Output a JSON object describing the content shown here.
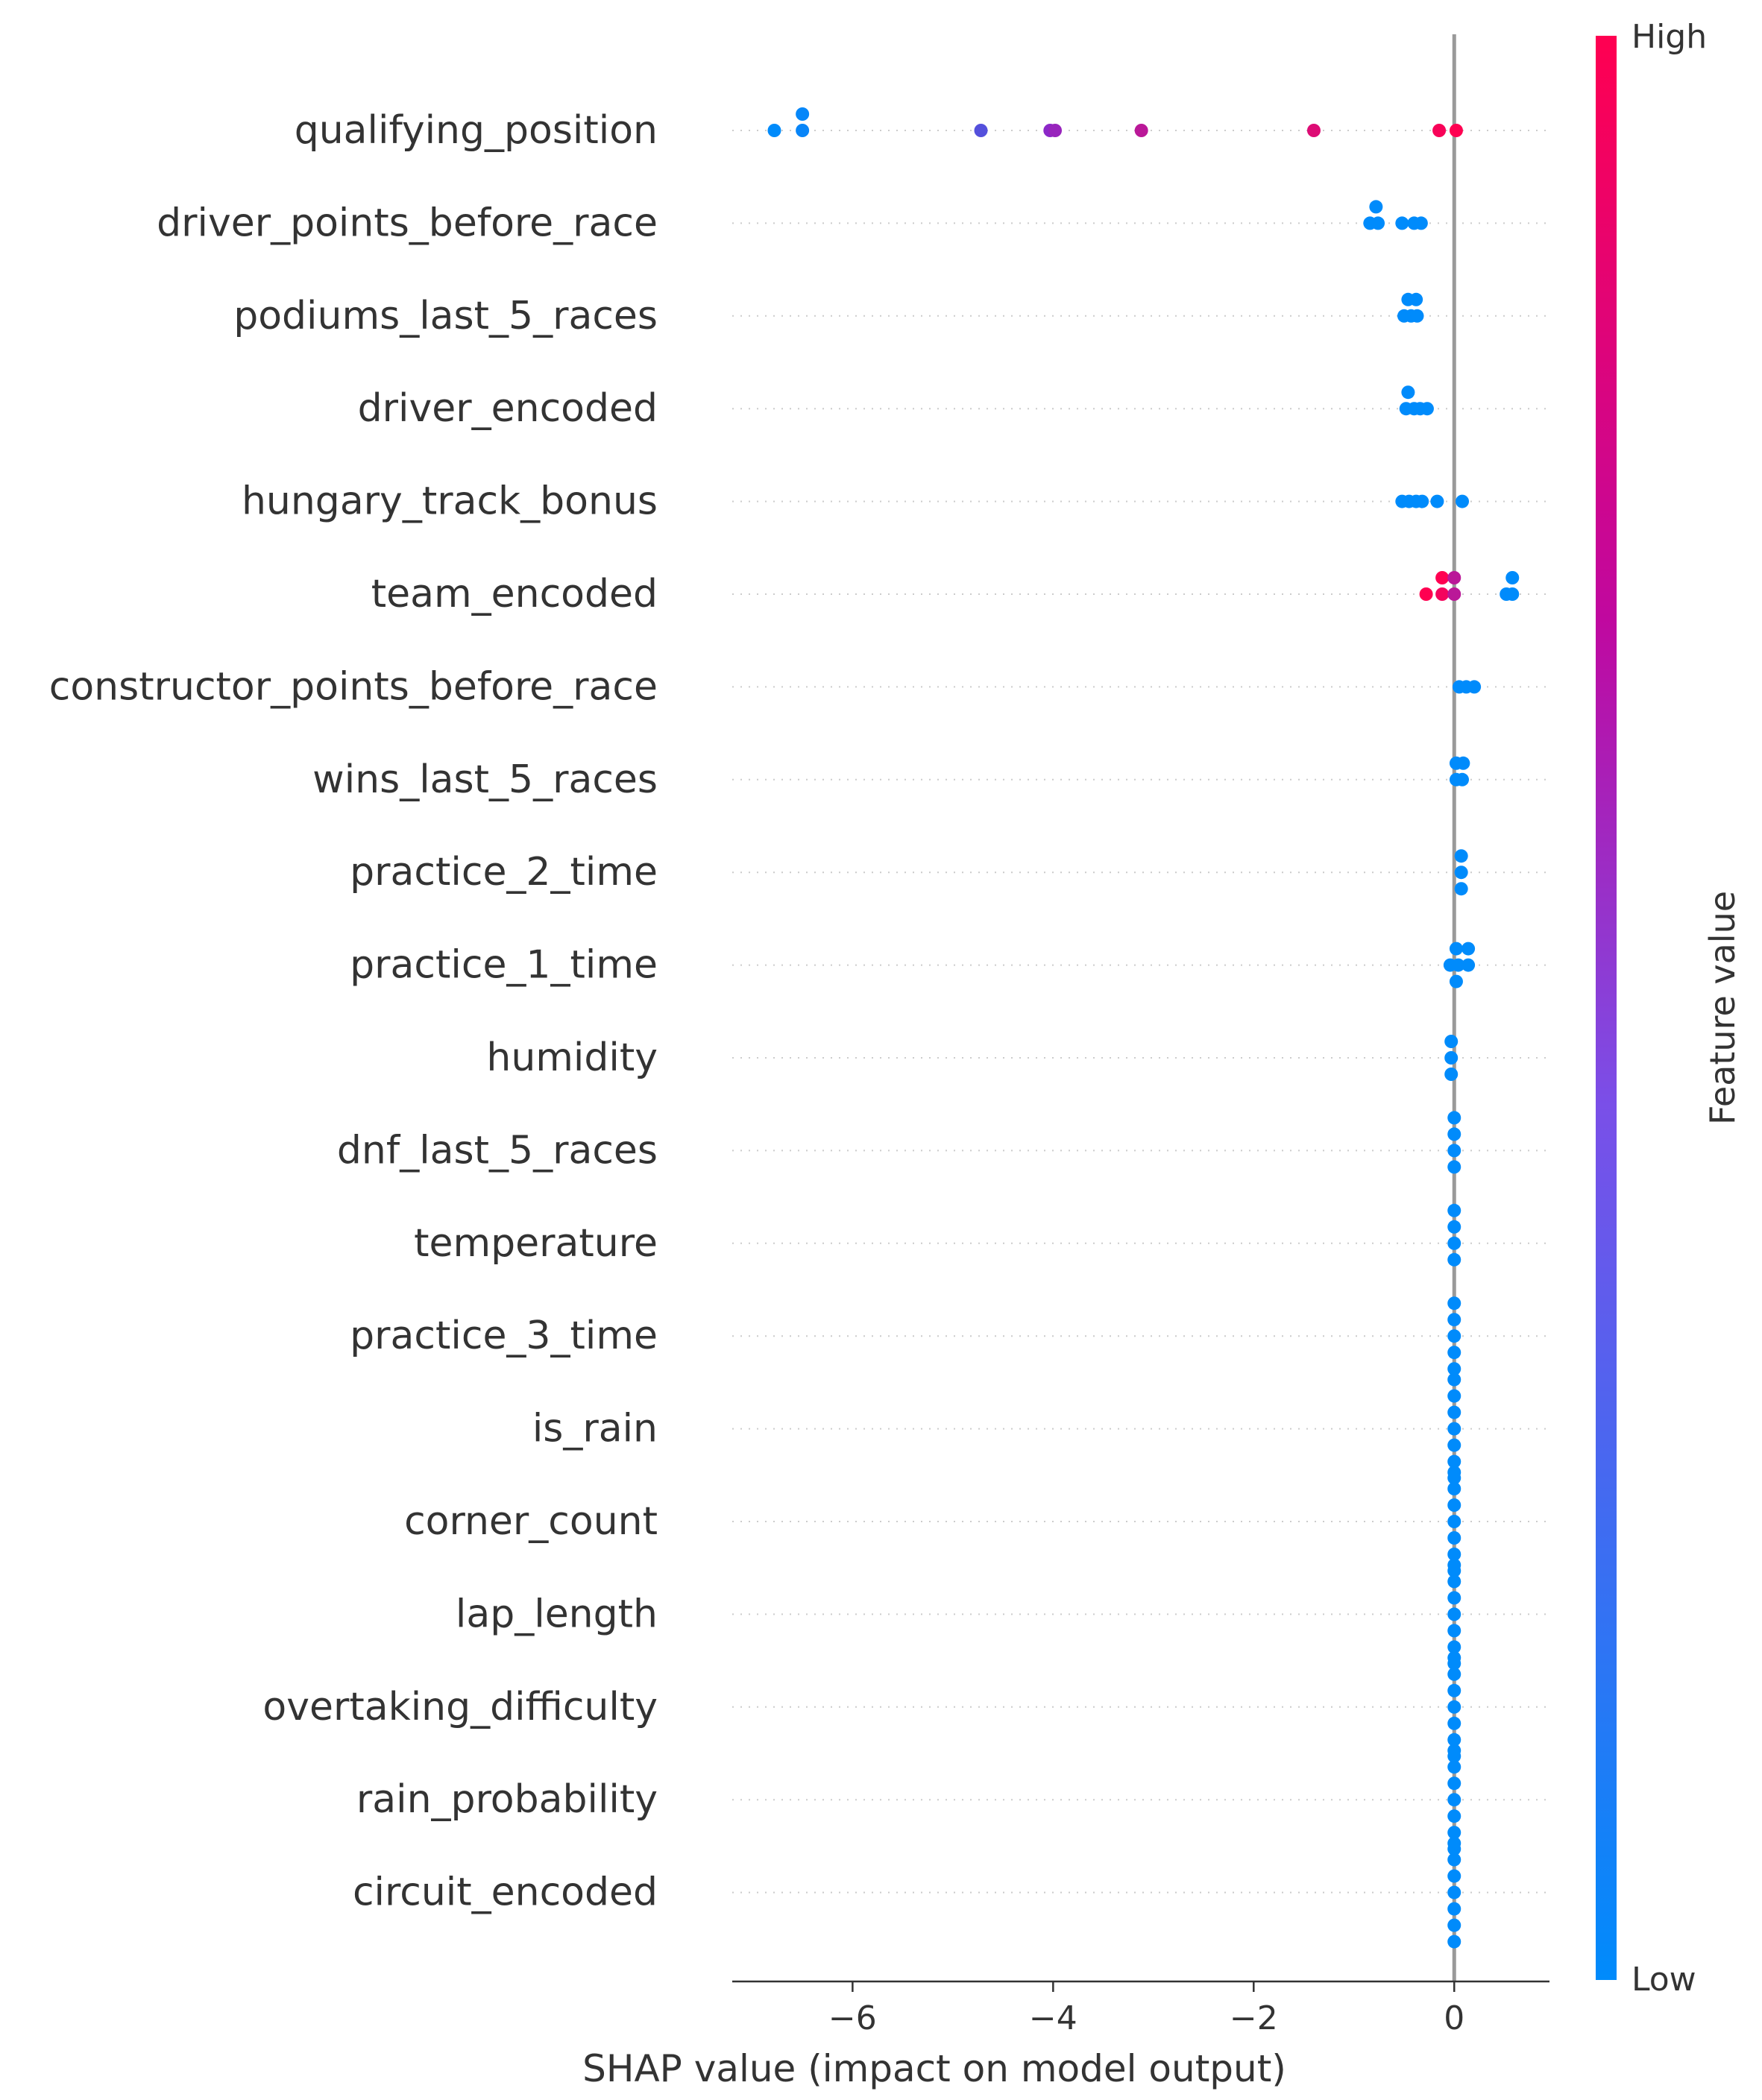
{
  "chart_data": {
    "type": "scatter",
    "xlabel": "SHAP value (impact on model output)",
    "xlim": [
      -7.2,
      0.95
    ],
    "xticks": [
      -6,
      -4,
      -2,
      0
    ],
    "xtick_labels": [
      "−6",
      "−4",
      "−2",
      "0"
    ],
    "grid": false,
    "colorbar": {
      "label": "Feature value",
      "high_label": "High",
      "low_label": "Low",
      "low_color": "#008bfb",
      "high_color": "#ff0051"
    },
    "features": [
      {
        "name": "qualifying_position",
        "points": [
          {
            "x": -6.78,
            "dy": 0,
            "v": 0.0
          },
          {
            "x": -6.5,
            "dy": -1,
            "v": 0.02
          },
          {
            "x": -6.5,
            "dy": 0,
            "v": 0.03
          },
          {
            "x": -4.72,
            "dy": 0,
            "v": 0.3
          },
          {
            "x": -4.03,
            "dy": 0,
            "v": 0.5
          },
          {
            "x": -3.98,
            "dy": 0,
            "v": 0.55
          },
          {
            "x": -3.12,
            "dy": 0,
            "v": 0.7
          },
          {
            "x": -1.4,
            "dy": 0,
            "v": 0.85
          },
          {
            "x": -0.15,
            "dy": 0,
            "v": 0.97
          },
          {
            "x": 0.02,
            "dy": 0,
            "v": 1.0
          }
        ]
      },
      {
        "name": "driver_points_before_race",
        "points": [
          {
            "x": -0.78,
            "dy": -1,
            "v": 0.0
          },
          {
            "x": -0.84,
            "dy": 0,
            "v": 0.0
          },
          {
            "x": -0.76,
            "dy": 0,
            "v": 0.0
          },
          {
            "x": -0.52,
            "dy": 0,
            "v": 0.0
          },
          {
            "x": -0.4,
            "dy": 0,
            "v": 0.0
          },
          {
            "x": -0.33,
            "dy": 0,
            "v": 0.0
          }
        ]
      },
      {
        "name": "podiums_last_5_races",
        "points": [
          {
            "x": -0.46,
            "dy": -1,
            "v": 0.0
          },
          {
            "x": -0.38,
            "dy": -1,
            "v": 0.0
          },
          {
            "x": -0.5,
            "dy": 0,
            "v": 0.0
          },
          {
            "x": -0.43,
            "dy": 0,
            "v": 0.0
          },
          {
            "x": -0.37,
            "dy": 0,
            "v": 0.0
          }
        ]
      },
      {
        "name": "driver_encoded",
        "points": [
          {
            "x": -0.46,
            "dy": -1,
            "v": 0.0
          },
          {
            "x": -0.48,
            "dy": 0,
            "v": 0.0
          },
          {
            "x": -0.4,
            "dy": 0,
            "v": 0.0
          },
          {
            "x": -0.34,
            "dy": 0,
            "v": 0.0
          },
          {
            "x": -0.27,
            "dy": 0,
            "v": 0.0
          }
        ]
      },
      {
        "name": "hungary_track_bonus",
        "points": [
          {
            "x": -0.52,
            "dy": 0,
            "v": 0.0
          },
          {
            "x": -0.45,
            "dy": 0,
            "v": 0.0
          },
          {
            "x": -0.38,
            "dy": 0,
            "v": 0.0
          },
          {
            "x": -0.32,
            "dy": 0,
            "v": 0.0
          },
          {
            "x": -0.17,
            "dy": 0,
            "v": 0.0
          },
          {
            "x": 0.08,
            "dy": 0,
            "v": 0.0
          }
        ]
      },
      {
        "name": "team_encoded",
        "points": [
          {
            "x": -0.12,
            "dy": -1,
            "v": 1.0
          },
          {
            "x": 0.0,
            "dy": -1,
            "v": 0.7
          },
          {
            "x": 0.58,
            "dy": -1,
            "v": 0.0
          },
          {
            "x": -0.28,
            "dy": 0,
            "v": 1.0
          },
          {
            "x": -0.12,
            "dy": 0,
            "v": 0.95
          },
          {
            "x": 0.0,
            "dy": 0,
            "v": 0.7
          },
          {
            "x": 0.52,
            "dy": 0,
            "v": 0.0
          },
          {
            "x": 0.58,
            "dy": 0,
            "v": 0.0
          }
        ]
      },
      {
        "name": "constructor_points_before_race",
        "points": [
          {
            "x": 0.05,
            "dy": 0,
            "v": 0.0
          },
          {
            "x": 0.12,
            "dy": 0,
            "v": 0.0
          },
          {
            "x": 0.2,
            "dy": 0,
            "v": 0.0
          }
        ]
      },
      {
        "name": "wins_last_5_races",
        "points": [
          {
            "x": 0.02,
            "dy": -1,
            "v": 0.0
          },
          {
            "x": 0.09,
            "dy": -1,
            "v": 0.0
          },
          {
            "x": 0.02,
            "dy": 0,
            "v": 0.0
          },
          {
            "x": 0.08,
            "dy": 0,
            "v": 0.0
          }
        ]
      },
      {
        "name": "practice_2_time",
        "points": [
          {
            "x": 0.07,
            "dy": -1,
            "v": 0.0
          },
          {
            "x": 0.07,
            "dy": 0,
            "v": 0.0
          },
          {
            "x": 0.07,
            "dy": 1,
            "v": 0.0
          }
        ]
      },
      {
        "name": "practice_1_time",
        "points": [
          {
            "x": 0.02,
            "dy": -1,
            "v": 0.0
          },
          {
            "x": 0.14,
            "dy": -1,
            "v": 0.0
          },
          {
            "x": -0.04,
            "dy": 0,
            "v": 0.0
          },
          {
            "x": 0.04,
            "dy": 0,
            "v": 0.0
          },
          {
            "x": 0.14,
            "dy": 0,
            "v": 0.0
          },
          {
            "x": 0.02,
            "dy": 1,
            "v": 0.0
          }
        ]
      },
      {
        "name": "humidity",
        "points": [
          {
            "x": -0.03,
            "dy": -1,
            "v": 0.0
          },
          {
            "x": -0.03,
            "dy": 0,
            "v": 0.0
          },
          {
            "x": -0.03,
            "dy": 1,
            "v": 0.0
          }
        ]
      },
      {
        "name": "dnf_last_5_races",
        "points": [
          {
            "x": 0.0,
            "dy": -2,
            "v": 0.0
          },
          {
            "x": 0.0,
            "dy": -1,
            "v": 0.0
          },
          {
            "x": 0.0,
            "dy": 0,
            "v": 0.0
          },
          {
            "x": 0.0,
            "dy": 1,
            "v": 0.0
          }
        ]
      },
      {
        "name": "temperature",
        "points": [
          {
            "x": 0.0,
            "dy": -2,
            "v": 0.0
          },
          {
            "x": 0.0,
            "dy": -1,
            "v": 0.0
          },
          {
            "x": 0.0,
            "dy": 0,
            "v": 0.0
          },
          {
            "x": 0.0,
            "dy": 1,
            "v": 0.0
          }
        ]
      },
      {
        "name": "practice_3_time",
        "points": [
          {
            "x": 0.0,
            "dy": -2,
            "v": 0.0
          },
          {
            "x": 0.0,
            "dy": -1,
            "v": 0.0
          },
          {
            "x": 0.0,
            "dy": 0,
            "v": 0.0
          },
          {
            "x": 0.0,
            "dy": 1,
            "v": 0.0
          },
          {
            "x": 0.0,
            "dy": 2,
            "v": 0.0
          }
        ]
      },
      {
        "name": "is_rain",
        "points": [
          {
            "x": 0.0,
            "dy": -3,
            "v": 0.0
          },
          {
            "x": 0.0,
            "dy": -2,
            "v": 0.0
          },
          {
            "x": 0.0,
            "dy": -1,
            "v": 0.0
          },
          {
            "x": 0.0,
            "dy": 0,
            "v": 0.0
          },
          {
            "x": 0.0,
            "dy": 1,
            "v": 0.0
          },
          {
            "x": 0.0,
            "dy": 2,
            "v": 0.0
          },
          {
            "x": 0.0,
            "dy": 3,
            "v": 0.0
          }
        ]
      },
      {
        "name": "corner_count",
        "points": [
          {
            "x": 0.0,
            "dy": -3,
            "v": 0.0
          },
          {
            "x": 0.0,
            "dy": -2,
            "v": 0.0
          },
          {
            "x": 0.0,
            "dy": -1,
            "v": 0.0
          },
          {
            "x": 0.0,
            "dy": 0,
            "v": 0.0
          },
          {
            "x": 0.0,
            "dy": 1,
            "v": 0.0
          },
          {
            "x": 0.0,
            "dy": 2,
            "v": 0.0
          },
          {
            "x": 0.0,
            "dy": 3,
            "v": 0.0
          }
        ]
      },
      {
        "name": "lap_length",
        "points": [
          {
            "x": 0.0,
            "dy": -3,
            "v": 0.0
          },
          {
            "x": 0.0,
            "dy": -2,
            "v": 0.0
          },
          {
            "x": 0.0,
            "dy": -1,
            "v": 0.0
          },
          {
            "x": 0.0,
            "dy": 0,
            "v": 0.0
          },
          {
            "x": 0.0,
            "dy": 1,
            "v": 0.0
          },
          {
            "x": 0.0,
            "dy": 2,
            "v": 0.0
          },
          {
            "x": 0.0,
            "dy": 3,
            "v": 0.0
          }
        ]
      },
      {
        "name": "overtaking_difficulty",
        "points": [
          {
            "x": 0.0,
            "dy": -3,
            "v": 0.0
          },
          {
            "x": 0.0,
            "dy": -2,
            "v": 0.0
          },
          {
            "x": 0.0,
            "dy": -1,
            "v": 0.0
          },
          {
            "x": 0.0,
            "dy": 0,
            "v": 0.0
          },
          {
            "x": 0.0,
            "dy": 1,
            "v": 0.0
          },
          {
            "x": 0.0,
            "dy": 2,
            "v": 0.0
          },
          {
            "x": 0.0,
            "dy": 3,
            "v": 0.0
          }
        ]
      },
      {
        "name": "rain_probability",
        "points": [
          {
            "x": 0.0,
            "dy": -3,
            "v": 0.0
          },
          {
            "x": 0.0,
            "dy": -2,
            "v": 0.0
          },
          {
            "x": 0.0,
            "dy": -1,
            "v": 0.0
          },
          {
            "x": 0.0,
            "dy": 0,
            "v": 0.0
          },
          {
            "x": 0.0,
            "dy": 1,
            "v": 0.0
          },
          {
            "x": 0.0,
            "dy": 2,
            "v": 0.0
          },
          {
            "x": 0.0,
            "dy": 3,
            "v": 0.0
          }
        ]
      },
      {
        "name": "circuit_encoded",
        "points": [
          {
            "x": 0.0,
            "dy": -3,
            "v": 0.0
          },
          {
            "x": 0.0,
            "dy": -2,
            "v": 0.0
          },
          {
            "x": 0.0,
            "dy": -1,
            "v": 0.0
          },
          {
            "x": 0.0,
            "dy": 0,
            "v": 0.0
          },
          {
            "x": 0.0,
            "dy": 1,
            "v": 0.0
          },
          {
            "x": 0.0,
            "dy": 2,
            "v": 0.0
          },
          {
            "x": 0.0,
            "dy": 3,
            "v": 0.0
          }
        ]
      }
    ]
  }
}
